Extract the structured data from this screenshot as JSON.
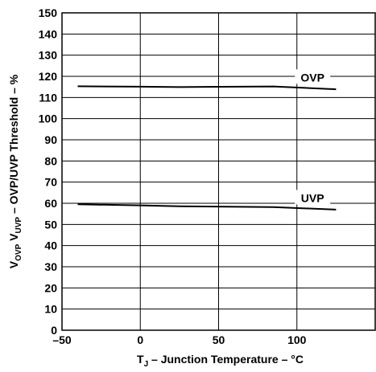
{
  "chart_data": {
    "type": "line",
    "xlabel": {
      "main": "T",
      "sub": "J",
      "rest": " – Junction Temperature – °C"
    },
    "ylabel": {
      "v1": "V",
      "s1": "OVP",
      "v2": " V",
      "s2": "UVP",
      "rest": " – OVP/UVP Threshold  – %"
    },
    "xlim": [
      -50,
      150
    ],
    "ylim": [
      0,
      150
    ],
    "xticks": [
      -50,
      0,
      50,
      100
    ],
    "xtick_labels": [
      "–50",
      "0",
      "50",
      "100"
    ],
    "yticks": [
      0,
      10,
      20,
      30,
      40,
      50,
      60,
      70,
      80,
      90,
      100,
      110,
      120,
      130,
      140,
      150
    ],
    "grid": true,
    "series": [
      {
        "name": "OVP",
        "color": "#000000",
        "points": [
          [
            -40,
            115.3
          ],
          [
            0,
            115.1
          ],
          [
            25,
            114.9
          ],
          [
            85,
            115.2
          ],
          [
            125,
            113.9
          ]
        ]
      },
      {
        "name": "UVP",
        "color": "#000000",
        "points": [
          [
            -40,
            59.5
          ],
          [
            0,
            59.0
          ],
          [
            25,
            58.6
          ],
          [
            85,
            58.2
          ],
          [
            125,
            57.0
          ]
        ]
      }
    ],
    "series_label_x": [
      {
        "text": "OVP",
        "at_x": 110,
        "at_y": 119.5
      },
      {
        "text": "UVP",
        "at_x": 110,
        "at_y": 62.5
      }
    ]
  }
}
